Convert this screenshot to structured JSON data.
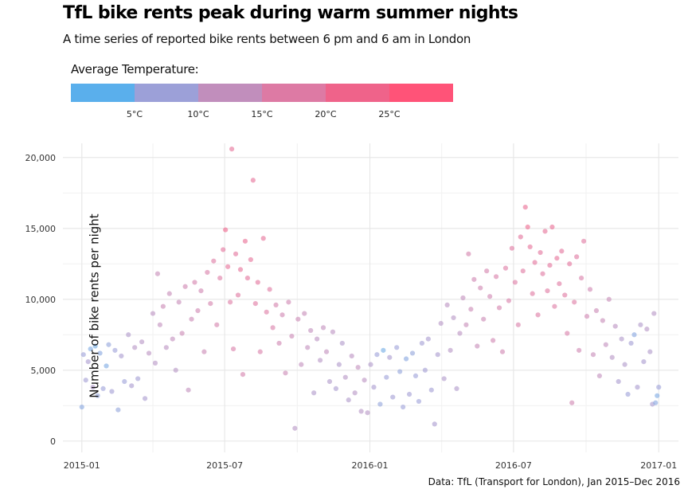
{
  "chart_data": {
    "type": "scatter",
    "title": "TfL bike rents peak during warm summer nights",
    "subtitle": "A time series of reported bike rents between 6 pm and 6 am in London",
    "legend": {
      "title": "Average Temperature:",
      "placement": "top-left",
      "ticks": [
        "5°C",
        "10°C",
        "15°C",
        "20°C",
        "25°C"
      ],
      "tick_values": [
        5,
        10,
        15,
        20,
        25
      ],
      "range": [
        0,
        30
      ],
      "colors": [
        "#5aafec",
        "#9ca0d8",
        "#c18ebc",
        "#dd7aa4",
        "#ef638a",
        "#ff5378"
      ]
    },
    "xlabel": "",
    "ylabel": "Number of bike rents per night",
    "caption": "Data: TfL (Transport for London), Jan 2015–Dec 2016",
    "x_ticks": [
      "2015-01",
      "2015-07",
      "2016-01",
      "2016-07",
      "2017-01"
    ],
    "x_range": [
      "2014-12-08",
      "2017-01-26"
    ],
    "y_ticks": [
      "0",
      "5,000",
      "10,000",
      "15,000",
      "20,000"
    ],
    "y_tick_values": [
      0,
      5000,
      10000,
      15000,
      20000
    ],
    "y_range": [
      -800,
      21000
    ],
    "grid": true,
    "points": [
      {
        "date": "2015-01-01",
        "value": 2400,
        "temp": 4
      },
      {
        "date": "2015-01-03",
        "value": 6100,
        "temp": 6
      },
      {
        "date": "2015-01-06",
        "value": 4300,
        "temp": 7
      },
      {
        "date": "2015-01-09",
        "value": 5600,
        "temp": 8
      },
      {
        "date": "2015-01-12",
        "value": 6500,
        "temp": 3
      },
      {
        "date": "2015-01-15",
        "value": 3800,
        "temp": 9
      },
      {
        "date": "2015-01-18",
        "value": 6700,
        "temp": 2
      },
      {
        "date": "2015-01-21",
        "value": 3200,
        "temp": 5
      },
      {
        "date": "2015-01-24",
        "value": 6200,
        "temp": 4
      },
      {
        "date": "2015-01-28",
        "value": 3700,
        "temp": 6
      },
      {
        "date": "2015-02-01",
        "value": 5300,
        "temp": 3
      },
      {
        "date": "2015-02-04",
        "value": 6800,
        "temp": 5
      },
      {
        "date": "2015-02-08",
        "value": 3500,
        "temp": 7
      },
      {
        "date": "2015-02-12",
        "value": 6400,
        "temp": 6
      },
      {
        "date": "2015-02-16",
        "value": 2200,
        "temp": 5
      },
      {
        "date": "2015-02-20",
        "value": 6000,
        "temp": 8
      },
      {
        "date": "2015-02-24",
        "value": 4200,
        "temp": 6
      },
      {
        "date": "2015-03-01",
        "value": 7500,
        "temp": 9
      },
      {
        "date": "2015-03-05",
        "value": 3900,
        "temp": 8
      },
      {
        "date": "2015-03-09",
        "value": 6600,
        "temp": 10
      },
      {
        "date": "2015-03-13",
        "value": 4400,
        "temp": 7
      },
      {
        "date": "2015-03-18",
        "value": 7000,
        "temp": 10
      },
      {
        "date": "2015-03-22",
        "value": 3000,
        "temp": 8
      },
      {
        "date": "2015-03-27",
        "value": 6200,
        "temp": 11
      },
      {
        "date": "2015-04-01",
        "value": 9000,
        "temp": 11
      },
      {
        "date": "2015-04-04",
        "value": 5500,
        "temp": 10
      },
      {
        "date": "2015-04-07",
        "value": 11800,
        "temp": 13
      },
      {
        "date": "2015-04-10",
        "value": 8200,
        "temp": 12
      },
      {
        "date": "2015-04-14",
        "value": 9500,
        "temp": 14
      },
      {
        "date": "2015-04-18",
        "value": 6600,
        "temp": 11
      },
      {
        "date": "2015-04-22",
        "value": 10400,
        "temp": 13
      },
      {
        "date": "2015-04-26",
        "value": 7200,
        "temp": 12
      },
      {
        "date": "2015-04-30",
        "value": 5000,
        "temp": 10
      },
      {
        "date": "2015-05-04",
        "value": 9800,
        "temp": 13
      },
      {
        "date": "2015-05-08",
        "value": 7600,
        "temp": 14
      },
      {
        "date": "2015-05-12",
        "value": 10900,
        "temp": 15
      },
      {
        "date": "2015-05-16",
        "value": 3600,
        "temp": 12
      },
      {
        "date": "2015-05-20",
        "value": 8600,
        "temp": 14
      },
      {
        "date": "2015-05-24",
        "value": 11200,
        "temp": 16
      },
      {
        "date": "2015-05-28",
        "value": 9200,
        "temp": 15
      },
      {
        "date": "2015-06-01",
        "value": 10600,
        "temp": 15
      },
      {
        "date": "2015-06-05",
        "value": 6300,
        "temp": 14
      },
      {
        "date": "2015-06-09",
        "value": 11900,
        "temp": 17
      },
      {
        "date": "2015-06-13",
        "value": 9700,
        "temp": 16
      },
      {
        "date": "2015-06-17",
        "value": 12700,
        "temp": 18
      },
      {
        "date": "2015-06-21",
        "value": 8200,
        "temp": 16
      },
      {
        "date": "2015-06-25",
        "value": 11500,
        "temp": 18
      },
      {
        "date": "2015-06-29",
        "value": 13500,
        "temp": 20
      },
      {
        "date": "2015-07-02",
        "value": 14900,
        "temp": 24
      },
      {
        "date": "2015-07-05",
        "value": 12300,
        "temp": 21
      },
      {
        "date": "2015-07-08",
        "value": 9800,
        "temp": 18
      },
      {
        "date": "2015-07-10",
        "value": 20600,
        "temp": 21
      },
      {
        "date": "2015-07-12",
        "value": 6500,
        "temp": 17
      },
      {
        "date": "2015-07-15",
        "value": 13200,
        "temp": 20
      },
      {
        "date": "2015-07-18",
        "value": 10300,
        "temp": 19
      },
      {
        "date": "2015-07-21",
        "value": 12100,
        "temp": 21
      },
      {
        "date": "2015-07-24",
        "value": 4700,
        "temp": 16
      },
      {
        "date": "2015-07-27",
        "value": 14100,
        "temp": 22
      },
      {
        "date": "2015-07-30",
        "value": 11500,
        "temp": 20
      },
      {
        "date": "2015-08-03",
        "value": 12800,
        "temp": 21
      },
      {
        "date": "2015-08-06",
        "value": 18400,
        "temp": 21
      },
      {
        "date": "2015-08-09",
        "value": 9700,
        "temp": 19
      },
      {
        "date": "2015-08-12",
        "value": 11200,
        "temp": 20
      },
      {
        "date": "2015-08-15",
        "value": 6300,
        "temp": 17
      },
      {
        "date": "2015-08-19",
        "value": 14300,
        "temp": 21
      },
      {
        "date": "2015-08-23",
        "value": 9100,
        "temp": 18
      },
      {
        "date": "2015-08-27",
        "value": 10700,
        "temp": 19
      },
      {
        "date": "2015-08-31",
        "value": 8000,
        "temp": 17
      },
      {
        "date": "2015-09-04",
        "value": 9600,
        "temp": 16
      },
      {
        "date": "2015-09-08",
        "value": 6900,
        "temp": 15
      },
      {
        "date": "2015-09-12",
        "value": 8900,
        "temp": 15
      },
      {
        "date": "2015-09-16",
        "value": 4800,
        "temp": 14
      },
      {
        "date": "2015-09-20",
        "value": 9800,
        "temp": 15
      },
      {
        "date": "2015-09-24",
        "value": 7400,
        "temp": 14
      },
      {
        "date": "2015-09-28",
        "value": 900,
        "temp": 10
      },
      {
        "date": "2015-10-02",
        "value": 8600,
        "temp": 14
      },
      {
        "date": "2015-10-06",
        "value": 5400,
        "temp": 12
      },
      {
        "date": "2015-10-10",
        "value": 9000,
        "temp": 13
      },
      {
        "date": "2015-10-14",
        "value": 6600,
        "temp": 12
      },
      {
        "date": "2015-10-18",
        "value": 7800,
        "temp": 12
      },
      {
        "date": "2015-10-22",
        "value": 3400,
        "temp": 9
      },
      {
        "date": "2015-10-26",
        "value": 7200,
        "temp": 11
      },
      {
        "date": "2015-10-30",
        "value": 5700,
        "temp": 10
      },
      {
        "date": "2015-11-03",
        "value": 8000,
        "temp": 12
      },
      {
        "date": "2015-11-07",
        "value": 6300,
        "temp": 12
      },
      {
        "date": "2015-11-11",
        "value": 4200,
        "temp": 9
      },
      {
        "date": "2015-11-15",
        "value": 7700,
        "temp": 11
      },
      {
        "date": "2015-11-19",
        "value": 3700,
        "temp": 8
      },
      {
        "date": "2015-11-23",
        "value": 5400,
        "temp": 9
      },
      {
        "date": "2015-11-27",
        "value": 6900,
        "temp": 9
      },
      {
        "date": "2015-12-01",
        "value": 4500,
        "temp": 10
      },
      {
        "date": "2015-12-05",
        "value": 2900,
        "temp": 9
      },
      {
        "date": "2015-12-09",
        "value": 6000,
        "temp": 11
      },
      {
        "date": "2015-12-13",
        "value": 3400,
        "temp": 10
      },
      {
        "date": "2015-12-17",
        "value": 5200,
        "temp": 12
      },
      {
        "date": "2015-12-21",
        "value": 2100,
        "temp": 10
      },
      {
        "date": "2015-12-25",
        "value": 4300,
        "temp": 11
      },
      {
        "date": "2015-12-29",
        "value": 2000,
        "temp": 10
      },
      {
        "date": "2016-01-02",
        "value": 5400,
        "temp": 9
      },
      {
        "date": "2016-01-06",
        "value": 3800,
        "temp": 8
      },
      {
        "date": "2016-01-10",
        "value": 6100,
        "temp": 6
      },
      {
        "date": "2016-01-14",
        "value": 2600,
        "temp": 5
      },
      {
        "date": "2016-01-18",
        "value": 6400,
        "temp": 2
      },
      {
        "date": "2016-01-22",
        "value": 4500,
        "temp": 6
      },
      {
        "date": "2016-01-26",
        "value": 5900,
        "temp": 8
      },
      {
        "date": "2016-01-30",
        "value": 3100,
        "temp": 7
      },
      {
        "date": "2016-02-04",
        "value": 6600,
        "temp": 6
      },
      {
        "date": "2016-02-08",
        "value": 4900,
        "temp": 5
      },
      {
        "date": "2016-02-12",
        "value": 2400,
        "temp": 6
      },
      {
        "date": "2016-02-16",
        "value": 5800,
        "temp": 4
      },
      {
        "date": "2016-02-20",
        "value": 3300,
        "temp": 7
      },
      {
        "date": "2016-02-24",
        "value": 6200,
        "temp": 5
      },
      {
        "date": "2016-02-28",
        "value": 4600,
        "temp": 6
      },
      {
        "date": "2016-03-03",
        "value": 2800,
        "temp": 6
      },
      {
        "date": "2016-03-07",
        "value": 6900,
        "temp": 7
      },
      {
        "date": "2016-03-11",
        "value": 5000,
        "temp": 7
      },
      {
        "date": "2016-03-15",
        "value": 7200,
        "temp": 8
      },
      {
        "date": "2016-03-19",
        "value": 3600,
        "temp": 7
      },
      {
        "date": "2016-03-23",
        "value": 1200,
        "temp": 8
      },
      {
        "date": "2016-03-27",
        "value": 6100,
        "temp": 8
      },
      {
        "date": "2016-03-31",
        "value": 8300,
        "temp": 10
      },
      {
        "date": "2016-04-04",
        "value": 4400,
        "temp": 9
      },
      {
        "date": "2016-04-08",
        "value": 9600,
        "temp": 11
      },
      {
        "date": "2016-04-12",
        "value": 6400,
        "temp": 10
      },
      {
        "date": "2016-04-16",
        "value": 8700,
        "temp": 10
      },
      {
        "date": "2016-04-20",
        "value": 3700,
        "temp": 9
      },
      {
        "date": "2016-04-24",
        "value": 7600,
        "temp": 11
      },
      {
        "date": "2016-04-28",
        "value": 10100,
        "temp": 12
      },
      {
        "date": "2016-05-02",
        "value": 8200,
        "temp": 13
      },
      {
        "date": "2016-05-05",
        "value": 13200,
        "temp": 16
      },
      {
        "date": "2016-05-08",
        "value": 9300,
        "temp": 14
      },
      {
        "date": "2016-05-12",
        "value": 11400,
        "temp": 15
      },
      {
        "date": "2016-05-16",
        "value": 6700,
        "temp": 13
      },
      {
        "date": "2016-05-20",
        "value": 10800,
        "temp": 15
      },
      {
        "date": "2016-05-24",
        "value": 8600,
        "temp": 14
      },
      {
        "date": "2016-05-28",
        "value": 12000,
        "temp": 16
      },
      {
        "date": "2016-06-01",
        "value": 10200,
        "temp": 15
      },
      {
        "date": "2016-06-05",
        "value": 7100,
        "temp": 15
      },
      {
        "date": "2016-06-09",
        "value": 11600,
        "temp": 17
      },
      {
        "date": "2016-06-13",
        "value": 9400,
        "temp": 16
      },
      {
        "date": "2016-06-17",
        "value": 6300,
        "temp": 15
      },
      {
        "date": "2016-06-21",
        "value": 12200,
        "temp": 18
      },
      {
        "date": "2016-06-25",
        "value": 9900,
        "temp": 17
      },
      {
        "date": "2016-06-29",
        "value": 13600,
        "temp": 19
      },
      {
        "date": "2016-07-03",
        "value": 11200,
        "temp": 18
      },
      {
        "date": "2016-07-07",
        "value": 8200,
        "temp": 17
      },
      {
        "date": "2016-07-10",
        "value": 14400,
        "temp": 20
      },
      {
        "date": "2016-07-13",
        "value": 12000,
        "temp": 19
      },
      {
        "date": "2016-07-16",
        "value": 16500,
        "temp": 22
      },
      {
        "date": "2016-07-19",
        "value": 15100,
        "temp": 23
      },
      {
        "date": "2016-07-22",
        "value": 13700,
        "temp": 21
      },
      {
        "date": "2016-07-25",
        "value": 10400,
        "temp": 19
      },
      {
        "date": "2016-07-28",
        "value": 12600,
        "temp": 20
      },
      {
        "date": "2016-08-01",
        "value": 8900,
        "temp": 18
      },
      {
        "date": "2016-08-04",
        "value": 13300,
        "temp": 20
      },
      {
        "date": "2016-08-07",
        "value": 11800,
        "temp": 19
      },
      {
        "date": "2016-08-10",
        "value": 14800,
        "temp": 21
      },
      {
        "date": "2016-08-13",
        "value": 10600,
        "temp": 19
      },
      {
        "date": "2016-08-16",
        "value": 12400,
        "temp": 20
      },
      {
        "date": "2016-08-19",
        "value": 15100,
        "temp": 22
      },
      {
        "date": "2016-08-22",
        "value": 9500,
        "temp": 18
      },
      {
        "date": "2016-08-25",
        "value": 12900,
        "temp": 21
      },
      {
        "date": "2016-08-28",
        "value": 11100,
        "temp": 19
      },
      {
        "date": "2016-08-31",
        "value": 13400,
        "temp": 20
      },
      {
        "date": "2016-09-04",
        "value": 10300,
        "temp": 19
      },
      {
        "date": "2016-09-07",
        "value": 7600,
        "temp": 17
      },
      {
        "date": "2016-09-10",
        "value": 12500,
        "temp": 20
      },
      {
        "date": "2016-09-13",
        "value": 2700,
        "temp": 15
      },
      {
        "date": "2016-09-16",
        "value": 9800,
        "temp": 18
      },
      {
        "date": "2016-09-19",
        "value": 13000,
        "temp": 19
      },
      {
        "date": "2016-09-22",
        "value": 6400,
        "temp": 15
      },
      {
        "date": "2016-09-25",
        "value": 11500,
        "temp": 17
      },
      {
        "date": "2016-09-28",
        "value": 14100,
        "temp": 19
      },
      {
        "date": "2016-10-02",
        "value": 8800,
        "temp": 15
      },
      {
        "date": "2016-10-06",
        "value": 10700,
        "temp": 15
      },
      {
        "date": "2016-10-10",
        "value": 6100,
        "temp": 13
      },
      {
        "date": "2016-10-14",
        "value": 9200,
        "temp": 14
      },
      {
        "date": "2016-10-18",
        "value": 4600,
        "temp": 12
      },
      {
        "date": "2016-10-22",
        "value": 8500,
        "temp": 13
      },
      {
        "date": "2016-10-26",
        "value": 6800,
        "temp": 12
      },
      {
        "date": "2016-10-30",
        "value": 10000,
        "temp": 13
      },
      {
        "date": "2016-11-03",
        "value": 5900,
        "temp": 10
      },
      {
        "date": "2016-11-07",
        "value": 8100,
        "temp": 11
      },
      {
        "date": "2016-11-11",
        "value": 4200,
        "temp": 8
      },
      {
        "date": "2016-11-15",
        "value": 7200,
        "temp": 9
      },
      {
        "date": "2016-11-19",
        "value": 5400,
        "temp": 9
      },
      {
        "date": "2016-11-23",
        "value": 3300,
        "temp": 6
      },
      {
        "date": "2016-11-27",
        "value": 6900,
        "temp": 7
      },
      {
        "date": "2016-12-01",
        "value": 7500,
        "temp": 4
      },
      {
        "date": "2016-12-05",
        "value": 3800,
        "temp": 8
      },
      {
        "date": "2016-12-09",
        "value": 8200,
        "temp": 9
      },
      {
        "date": "2016-12-13",
        "value": 5600,
        "temp": 8
      },
      {
        "date": "2016-12-17",
        "value": 7900,
        "temp": 10
      },
      {
        "date": "2016-12-21",
        "value": 6300,
        "temp": 9
      },
      {
        "date": "2016-12-24",
        "value": 2600,
        "temp": 8
      },
      {
        "date": "2016-12-26",
        "value": 9000,
        "temp": 10
      },
      {
        "date": "2016-12-28",
        "value": 2700,
        "temp": 4
      },
      {
        "date": "2016-12-30",
        "value": 3200,
        "temp": 3
      },
      {
        "date": "2017-01-01",
        "value": 3800,
        "temp": 6
      }
    ]
  }
}
